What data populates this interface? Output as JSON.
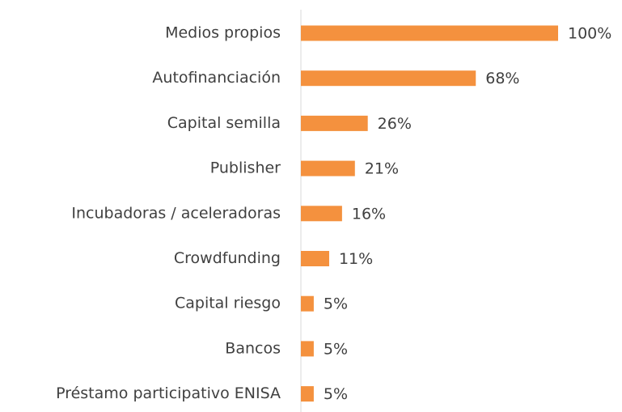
{
  "chart_data": {
    "type": "bar",
    "orientation": "horizontal",
    "categories": [
      "Medios propios",
      "Autofinanciación",
      "Capital semilla",
      "Publisher",
      "Incubadoras / aceleradoras",
      "Crowdfunding",
      "Capital riesgo",
      "Bancos",
      "Préstamo participativo ENISA"
    ],
    "values": [
      100,
      68,
      26,
      21,
      16,
      11,
      5,
      5,
      5
    ],
    "value_labels": [
      "100%",
      "68%",
      "26%",
      "21%",
      "16%",
      "11%",
      "5%",
      "5%",
      "5%"
    ],
    "color": "#f4913e",
    "xlim": [
      0,
      100
    ]
  }
}
